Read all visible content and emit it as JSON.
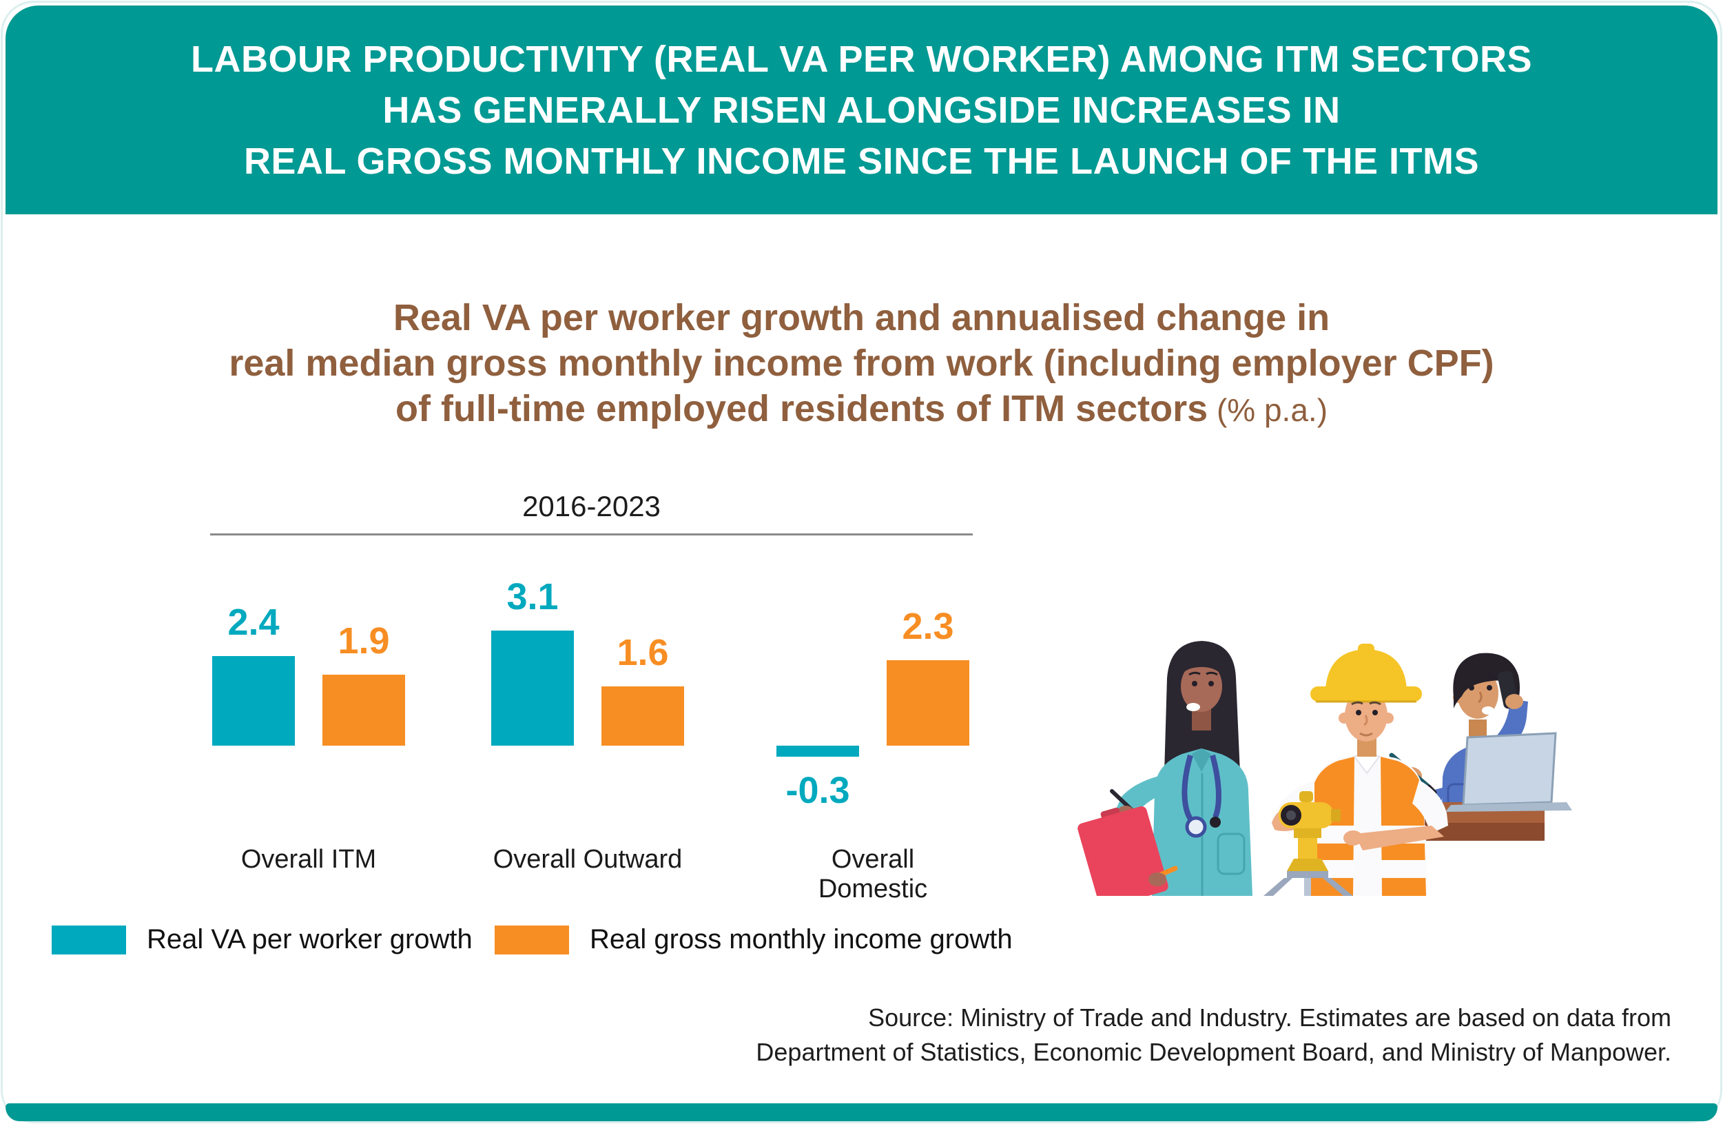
{
  "page": {
    "colors": {
      "banner_teal": "#009993",
      "bar_teal": "#00A9BE",
      "bar_orange": "#F78E23",
      "subtitle_brown": "#8F5F3E",
      "rule_grey": "#8A8A8A"
    },
    "header": {
      "title_lines": [
        "LABOUR PRODUCTIVITY (REAL VA PER WORKER) AMONG ITM SECTORS",
        "HAS GENERALLY RISEN ALONGSIDE INCREASES IN",
        "REAL GROSS MONTHLY INCOME SINCE THE LAUNCH OF THE ITMS"
      ]
    },
    "subtitle": {
      "line1": "Real VA per worker growth and annualised change in",
      "line2": "real median gross monthly income from work (including employer CPF)",
      "line3_bold": "of full-time employed residents of ITM sectors",
      "line3_suffix": " (% p.a.)"
    },
    "source_lines": [
      "Source: Ministry of Trade and Industry. Estimates are based on data from",
      "Department of Statistics, Economic Development Board, and Ministry of Manpower."
    ]
  },
  "chart_data": {
    "type": "bar",
    "title": "Real VA per worker growth and annualised change in real median gross monthly income from work (including employer CPF) of full-time employed residents of ITM sectors",
    "unit": "% p.a.",
    "period_label": "2016-2023",
    "categories": [
      "Overall ITM",
      "Overall Outward",
      "Overall Domestic"
    ],
    "series": [
      {
        "name": "Real VA per worker growth",
        "color": "#00A9BE",
        "values": [
          2.4,
          3.1,
          -0.3
        ]
      },
      {
        "name": "Real gross monthly income growth",
        "color": "#F78E23",
        "values": [
          1.9,
          1.6,
          2.3
        ]
      }
    ],
    "value_labels_shown": true,
    "gridlines": false,
    "baseline_value": 0,
    "legend_position": "bottom-left"
  }
}
